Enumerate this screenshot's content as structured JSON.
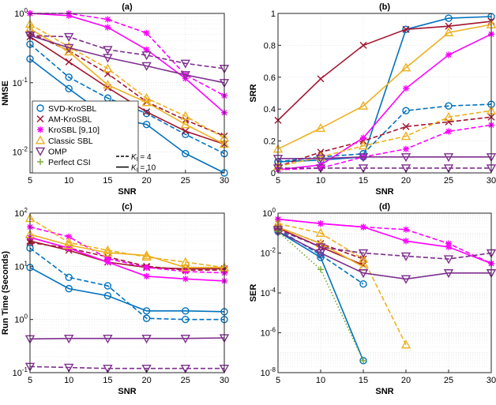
{
  "colors": {
    "svd": "#0072BD",
    "am": "#A2142F",
    "kro": "#FF00FF",
    "classic": "#EDB120",
    "omp": "#7E2F8E",
    "perfect": "#77AC30"
  },
  "legend": {
    "location": "panel (a), lower-left",
    "methods": [
      {
        "key": "svd",
        "label": "SVD-KroSBL",
        "marker": "circle"
      },
      {
        "key": "am",
        "label": "AM-KroSBL",
        "marker": "x"
      },
      {
        "key": "kro",
        "label": "KroSBL [9,10]",
        "marker": "star"
      },
      {
        "key": "classic",
        "label": "Classic SBL",
        "marker": "triangle-up"
      },
      {
        "key": "omp",
        "label": "OMP",
        "marker": "triangle-down"
      },
      {
        "key": "perfect",
        "label": "Perfect CSI",
        "marker": "plus"
      }
    ],
    "linestyles": [
      {
        "label": "K_I = 4",
        "style": "dashed"
      },
      {
        "label": "K_I = 10",
        "style": "solid"
      }
    ]
  },
  "chart_data": [
    {
      "id": "a",
      "title": "(a)",
      "type": "line",
      "xlabel": "SNR",
      "ylabel": "NMSE",
      "yscale": "log",
      "xlim": [
        5,
        30
      ],
      "ylim": [
        0.005,
        1
      ],
      "xticks": [
        5,
        10,
        15,
        20,
        25,
        30
      ],
      "yticks": [
        {
          "v": 0.01,
          "label": "10^-2"
        },
        {
          "v": 0.1,
          "label": "10^-1"
        },
        {
          "v": 1,
          "label": "10^0"
        }
      ],
      "grid": true,
      "x": [
        5,
        10,
        15,
        20,
        25,
        30
      ],
      "series": [
        {
          "method": "svd",
          "ki": 4,
          "values": [
            0.36,
            0.12,
            0.06,
            0.036,
            0.018,
            0.0095
          ]
        },
        {
          "method": "svd",
          "ki": 10,
          "values": [
            0.22,
            0.082,
            0.032,
            0.025,
            0.0095,
            0.005
          ]
        },
        {
          "method": "am",
          "ki": 4,
          "values": [
            0.52,
            0.29,
            0.135,
            0.053,
            0.029,
            0.017
          ]
        },
        {
          "method": "am",
          "ki": 10,
          "values": [
            0.46,
            0.2,
            0.085,
            0.038,
            0.02,
            0.013
          ]
        },
        {
          "method": "kro",
          "ki": 4,
          "values": [
            1.0,
            1.0,
            0.82,
            0.52,
            0.13,
            0.065
          ]
        },
        {
          "method": "kro",
          "ki": 10,
          "values": [
            1.0,
            0.93,
            0.63,
            0.3,
            0.115,
            0.037
          ]
        },
        {
          "method": "classic",
          "ki": 4,
          "values": [
            0.7,
            0.33,
            0.16,
            0.06,
            0.033,
            0.016
          ]
        },
        {
          "method": "classic",
          "ki": 10,
          "values": [
            0.6,
            0.28,
            0.093,
            0.052,
            0.025,
            0.013
          ]
        },
        {
          "method": "omp",
          "ki": 4,
          "values": [
            0.48,
            0.46,
            0.3,
            0.25,
            0.19,
            0.16
          ]
        },
        {
          "method": "omp",
          "ki": 10,
          "values": [
            0.48,
            0.32,
            0.23,
            0.175,
            0.13,
            0.1
          ]
        }
      ]
    },
    {
      "id": "b",
      "title": "(b)",
      "type": "line",
      "xlabel": "SNR",
      "ylabel": "SRR",
      "yscale": "linear",
      "xlim": [
        5,
        30
      ],
      "ylim": [
        0,
        1
      ],
      "xticks": [
        5,
        10,
        15,
        20,
        25,
        30
      ],
      "yticks": [
        {
          "v": 0,
          "label": "0"
        },
        {
          "v": 0.2,
          "label": "0.2"
        },
        {
          "v": 0.4,
          "label": "0.4"
        },
        {
          "v": 0.6,
          "label": "0.6"
        },
        {
          "v": 0.8,
          "label": "0.8"
        },
        {
          "v": 1,
          "label": "1"
        }
      ],
      "grid": true,
      "x": [
        5,
        10,
        15,
        20,
        25,
        30
      ],
      "series": [
        {
          "method": "svd",
          "ki": 4,
          "values": [
            0.07,
            0.1,
            0.12,
            0.39,
            0.42,
            0.43
          ]
        },
        {
          "method": "svd",
          "ki": 10,
          "values": [
            0.07,
            0.08,
            0.1,
            0.9,
            0.97,
            0.98
          ]
        },
        {
          "method": "am",
          "ki": 4,
          "values": [
            0.04,
            0.13,
            0.2,
            0.29,
            0.32,
            0.35
          ]
        },
        {
          "method": "am",
          "ki": 10,
          "values": [
            0.33,
            0.59,
            0.8,
            0.9,
            0.92,
            0.95
          ]
        },
        {
          "method": "kro",
          "ki": 4,
          "values": [
            0.02,
            0.03,
            0.1,
            0.15,
            0.26,
            0.3
          ]
        },
        {
          "method": "kro",
          "ki": 10,
          "values": [
            0.02,
            0.05,
            0.22,
            0.53,
            0.74,
            0.87
          ]
        },
        {
          "method": "classic",
          "ki": 4,
          "values": [
            0.04,
            0.1,
            0.17,
            0.23,
            0.35,
            0.39
          ]
        },
        {
          "method": "classic",
          "ki": 10,
          "values": [
            0.15,
            0.28,
            0.42,
            0.66,
            0.88,
            0.93
          ]
        },
        {
          "method": "omp",
          "ki": 4,
          "values": [
            0.03,
            0.03,
            0.03,
            0.03,
            0.03,
            0.03
          ]
        },
        {
          "method": "omp",
          "ki": 10,
          "values": [
            0.09,
            0.09,
            0.1,
            0.1,
            0.1,
            0.1
          ]
        }
      ]
    },
    {
      "id": "c",
      "title": "(c)",
      "type": "line",
      "xlabel": "SNR",
      "ylabel": "Run Time (Seconds)",
      "yscale": "log",
      "xlim": [
        5,
        30
      ],
      "ylim": [
        0.1,
        100
      ],
      "xticks": [
        5,
        10,
        15,
        20,
        25,
        30
      ],
      "yticks": [
        {
          "v": 0.1,
          "label": "10^-1"
        },
        {
          "v": 1,
          "label": "10^0"
        },
        {
          "v": 10,
          "label": "10^1"
        },
        {
          "v": 100,
          "label": "10^2"
        }
      ],
      "grid": true,
      "x": [
        5,
        10,
        15,
        20,
        25,
        30
      ],
      "series": [
        {
          "method": "svd",
          "ki": 4,
          "values": [
            22,
            6.2,
            4.3,
            1.05,
            1.0,
            1.0
          ]
        },
        {
          "method": "svd",
          "ki": 10,
          "values": [
            9.5,
            3.8,
            2.8,
            1.45,
            1.45,
            1.4
          ]
        },
        {
          "method": "am",
          "ki": 4,
          "values": [
            28,
            22,
            15,
            10,
            8.5,
            8.5
          ]
        },
        {
          "method": "am",
          "ki": 10,
          "values": [
            30,
            20,
            12,
            9.5,
            9.0,
            9.0
          ]
        },
        {
          "method": "kro",
          "ki": 4,
          "values": [
            55,
            36,
            14,
            9.5,
            8.0,
            7.5
          ]
        },
        {
          "method": "kro",
          "ki": 10,
          "values": [
            35,
            22,
            12,
            6.5,
            5.8,
            5.3
          ]
        },
        {
          "method": "classic",
          "ki": 4,
          "values": [
            80,
            28,
            20,
            15,
            12,
            9.5
          ]
        },
        {
          "method": "classic",
          "ki": 10,
          "values": [
            40,
            25,
            18,
            16,
            9.5,
            9.5
          ]
        },
        {
          "method": "omp",
          "ki": 4,
          "values": [
            0.13,
            0.125,
            0.12,
            0.12,
            0.12,
            0.12
          ]
        },
        {
          "method": "omp",
          "ki": 10,
          "values": [
            0.43,
            0.44,
            0.44,
            0.44,
            0.44,
            0.45
          ]
        }
      ]
    },
    {
      "id": "d",
      "title": "(d)",
      "type": "line",
      "xlabel": "SNR",
      "ylabel": "SER",
      "yscale": "log",
      "xlim": [
        5,
        30
      ],
      "ylim": [
        1e-08,
        1
      ],
      "xticks": [
        5,
        10,
        15,
        20,
        25,
        30
      ],
      "yticks": [
        {
          "v": 1e-08,
          "label": "10^-8"
        },
        {
          "v": 1e-06,
          "label": "10^-6"
        },
        {
          "v": 0.0001,
          "label": "10^-4"
        },
        {
          "v": 0.01,
          "label": "10^-2"
        },
        {
          "v": 1,
          "label": "10^0"
        }
      ],
      "grid": true,
      "x": [
        5,
        10,
        15,
        20,
        25,
        30
      ],
      "series": [
        {
          "method": "svd",
          "ki": 4,
          "x": [
            5,
            10,
            15
          ],
          "values": [
            0.15,
            0.008,
            0.00028
          ]
        },
        {
          "method": "svd",
          "ki": 10,
          "x": [
            5,
            10,
            15
          ],
          "values": [
            0.12,
            0.006,
            4e-08
          ]
        },
        {
          "method": "am",
          "ki": 4,
          "x": [
            5,
            10,
            15
          ],
          "values": [
            0.2,
            0.03,
            0.005
          ]
        },
        {
          "method": "am",
          "ki": 10,
          "x": [
            5,
            10,
            15
          ],
          "values": [
            0.18,
            0.02,
            0.0025
          ]
        },
        {
          "method": "kro",
          "ki": 4,
          "x": [
            5,
            10,
            15,
            20,
            25,
            30
          ],
          "values": [
            0.5,
            0.3,
            0.2,
            0.15,
            0.03,
            0.003
          ]
        },
        {
          "method": "kro",
          "ki": 10,
          "x": [
            5,
            10,
            15,
            20,
            25,
            30
          ],
          "values": [
            0.5,
            0.3,
            0.2,
            0.04,
            0.02,
            0.003
          ]
        },
        {
          "method": "classic",
          "ki": 4,
          "x": [
            5,
            10,
            15,
            20
          ],
          "values": [
            0.3,
            0.1,
            0.005,
            2.5e-07
          ]
        },
        {
          "method": "classic",
          "ki": 10,
          "x": [
            5,
            10,
            15
          ],
          "values": [
            0.2,
            0.03,
            0.002
          ]
        },
        {
          "method": "omp",
          "ki": 4,
          "x": [
            5,
            10,
            15,
            20,
            25,
            30
          ],
          "values": [
            0.15,
            0.02,
            0.01,
            0.007,
            0.005,
            0.01
          ]
        },
        {
          "method": "omp",
          "ki": 10,
          "x": [
            5,
            10,
            15,
            20,
            25,
            30
          ],
          "values": [
            0.12,
            0.01,
            0.001,
            0.0005,
            0.001,
            0.001
          ]
        },
        {
          "method": "perfect",
          "ki": 0,
          "style": "dotted",
          "x": [
            5,
            10,
            15
          ],
          "values": [
            0.12,
            0.0015,
            4e-08
          ]
        }
      ]
    }
  ]
}
